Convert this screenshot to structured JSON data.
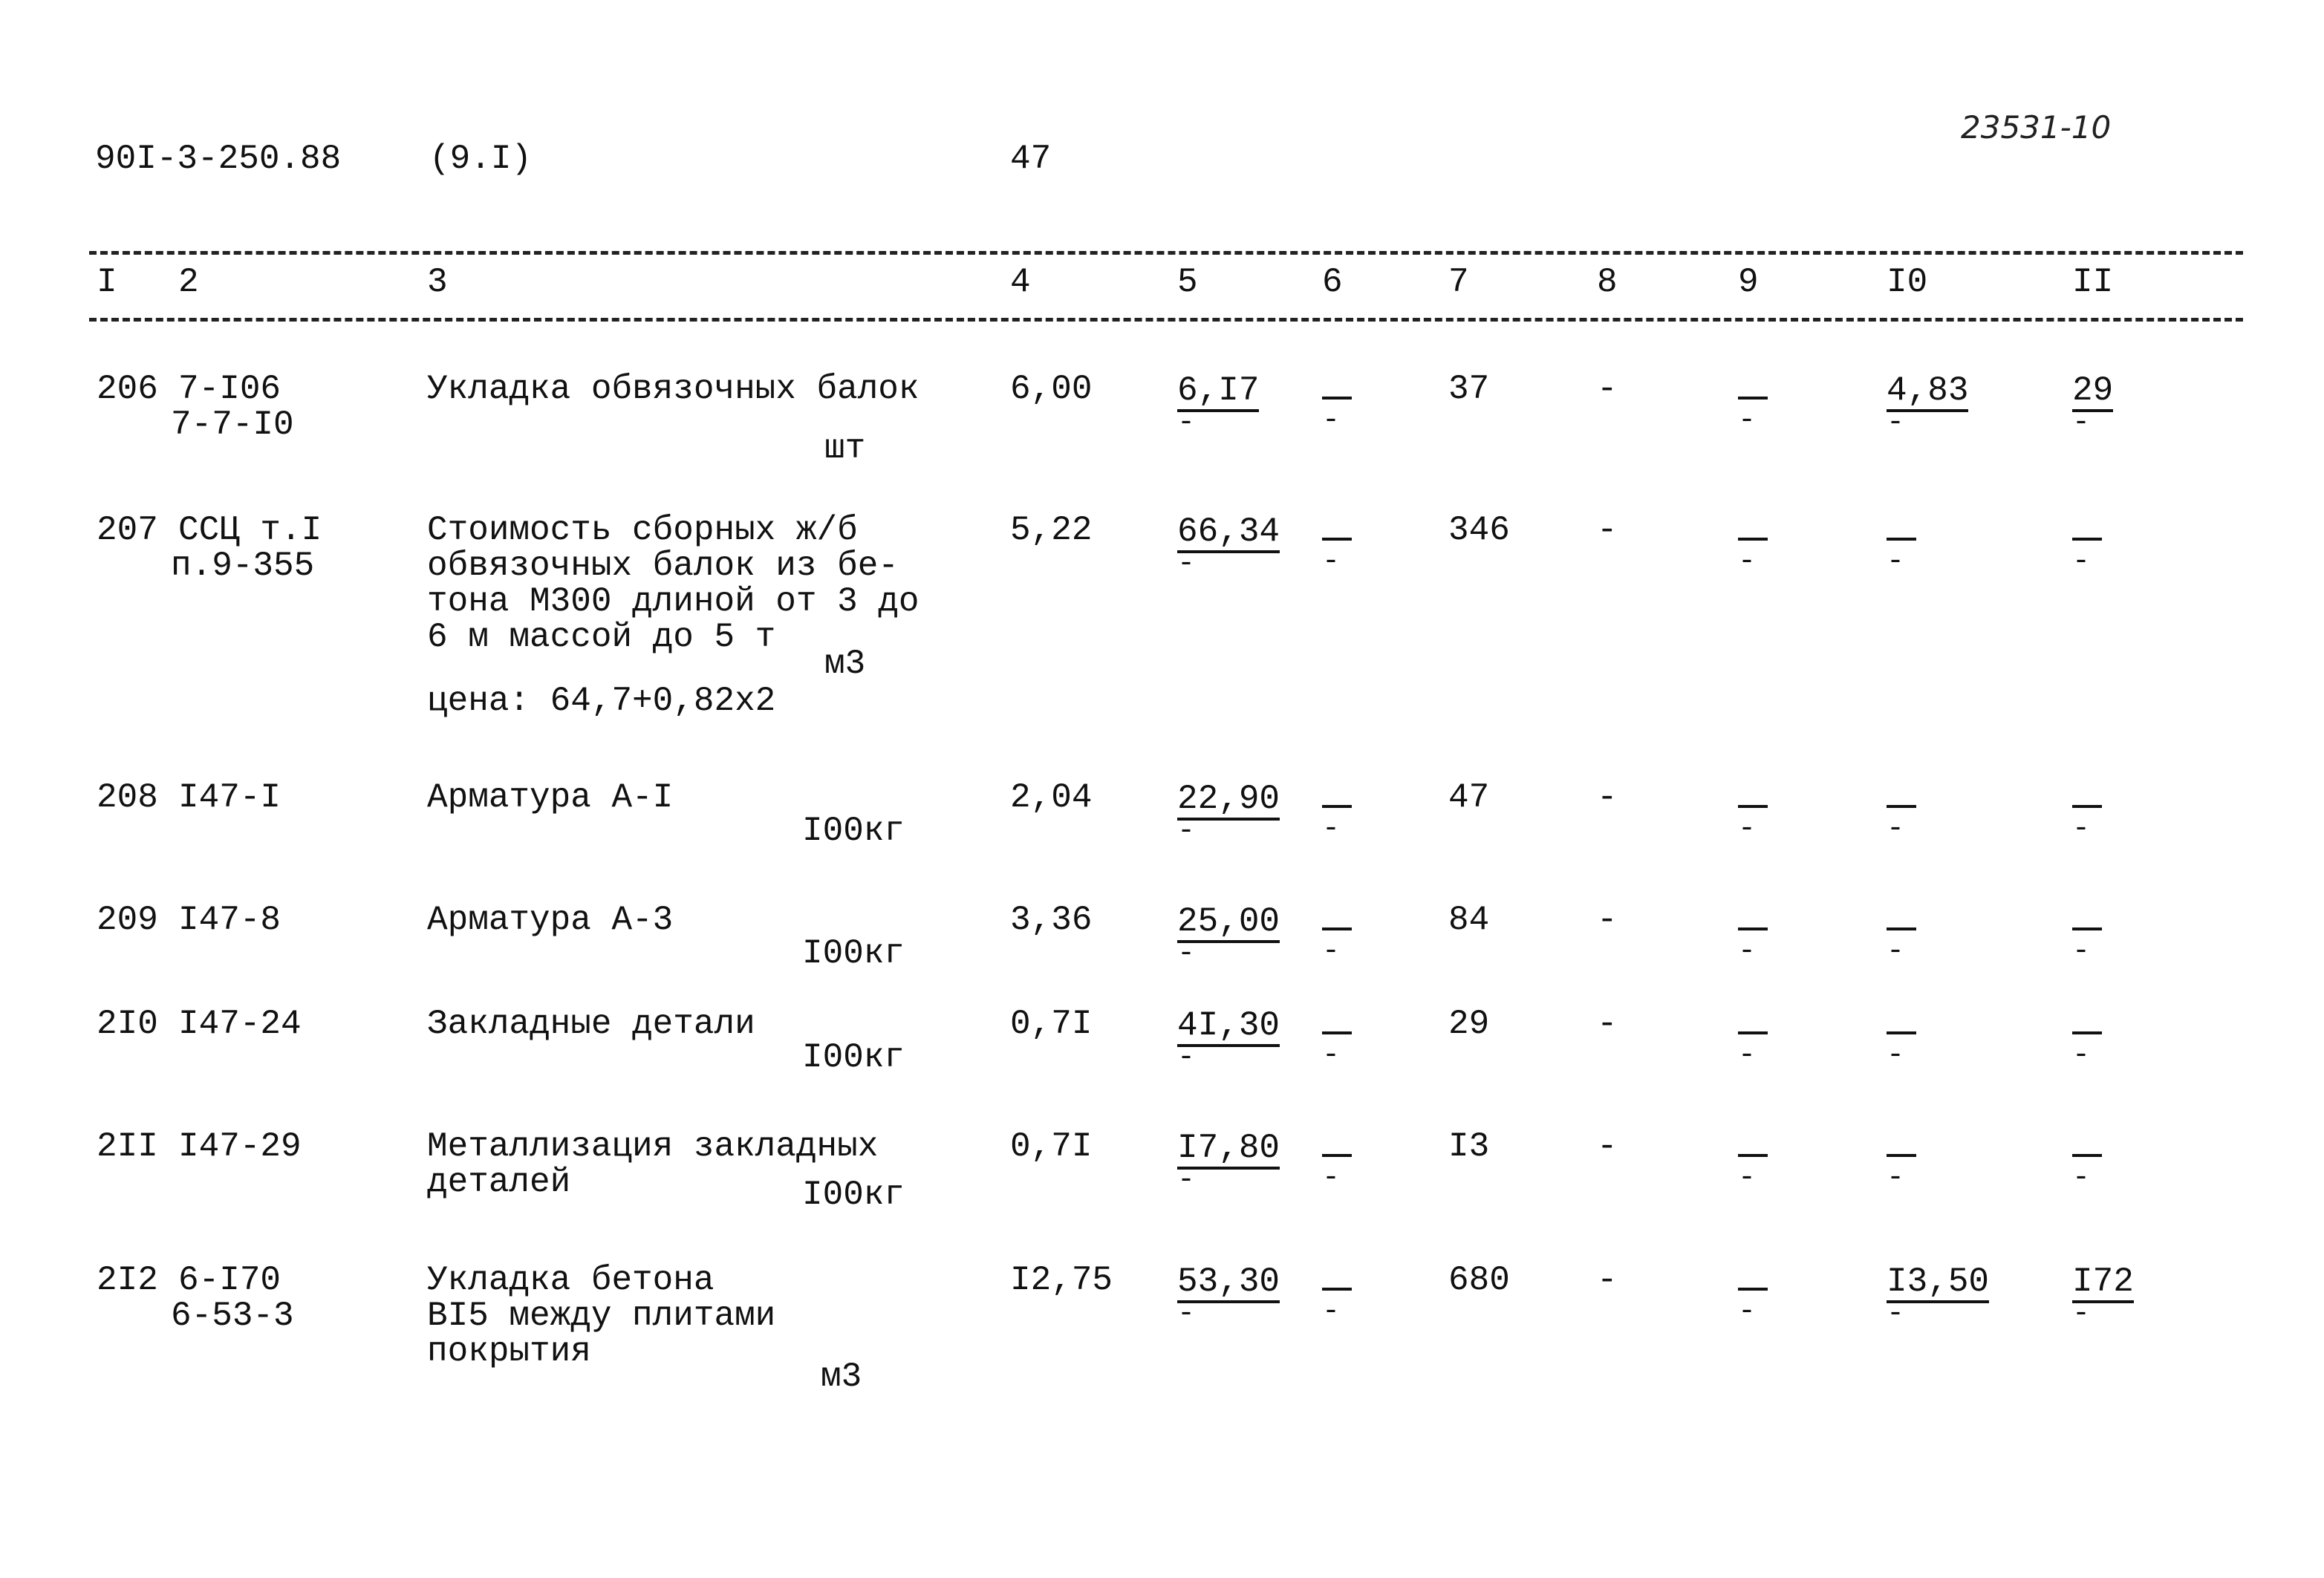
{
  "header": {
    "doc_code": "90I-3-250.88",
    "section": "(9.I)",
    "page": "47",
    "handwritten_number": "23531-10"
  },
  "columns": [
    "I",
    "2",
    "3",
    "4",
    "5",
    "6",
    "7",
    "8",
    "9",
    "I0",
    "II"
  ],
  "rows": [
    {
      "n": "206",
      "code": [
        "7-I06",
        "7-7-I0"
      ],
      "desc": [
        "Укладка обвязочных балок"
      ],
      "unit": "шт",
      "note": "",
      "c4": "6,00",
      "c5": "6,I7",
      "c6": "-",
      "c7": "37",
      "c8": "-",
      "c9": "-",
      "c10": "4,83",
      "c11": "29"
    },
    {
      "n": "207",
      "code": [
        "ССЦ т.I",
        "п.9-355"
      ],
      "desc": [
        "Стоимость сборных ж/б",
        "обвязочных балок из бе-",
        "тона М300 длиной от 3 до",
        "6 м массой до 5 т"
      ],
      "unit": "м3",
      "note": "цена: 64,7+0,82х2",
      "c4": "5,22",
      "c5": "66,34",
      "c6": "-",
      "c7": "346",
      "c8": "-",
      "c9": "-",
      "c10": "-",
      "c11": "-"
    },
    {
      "n": "208",
      "code": [
        "I47-I"
      ],
      "desc": [
        "Арматура А-I"
      ],
      "unit": "I00кг",
      "note": "",
      "c4": "2,04",
      "c5": "22,90",
      "c6": "-",
      "c7": "47",
      "c8": "-",
      "c9": "-",
      "c10": "-",
      "c11": "-"
    },
    {
      "n": "209",
      "code": [
        "I47-8"
      ],
      "desc": [
        "Арматура А-3"
      ],
      "unit": "I00кг",
      "note": "",
      "c4": "3,36",
      "c5": "25,00",
      "c6": "-",
      "c7": "84",
      "c8": "-",
      "c9": "-",
      "c10": "-",
      "c11": "-"
    },
    {
      "n": "2I0",
      "code": [
        "I47-24"
      ],
      "desc": [
        "Закладные детали"
      ],
      "unit": "I00кг",
      "note": "",
      "c4": "0,7I",
      "c5": "4I,30",
      "c6": "-",
      "c7": "29",
      "c8": "-",
      "c9": "-",
      "c10": "-",
      "c11": "-"
    },
    {
      "n": "2II",
      "code": [
        "I47-29"
      ],
      "desc": [
        "Металлизация закладных",
        "деталей"
      ],
      "unit": "I00кг",
      "note": "",
      "c4": "0,7I",
      "c5": "I7,80",
      "c6": "-",
      "c7": "I3",
      "c8": "-",
      "c9": "-",
      "c10": "-",
      "c11": "-"
    },
    {
      "n": "2I2",
      "code": [
        "6-I70",
        "6-53-3"
      ],
      "desc": [
        "Укладка бетона",
        "BI5 между плитами",
        "покрытия"
      ],
      "unit": "м3",
      "note": "",
      "c4": "I2,75",
      "c5": "53,30",
      "c6": "-",
      "c7": "680",
      "c8": "-",
      "c9": "-",
      "c10": "I3,50",
      "c11": "I72"
    }
  ]
}
